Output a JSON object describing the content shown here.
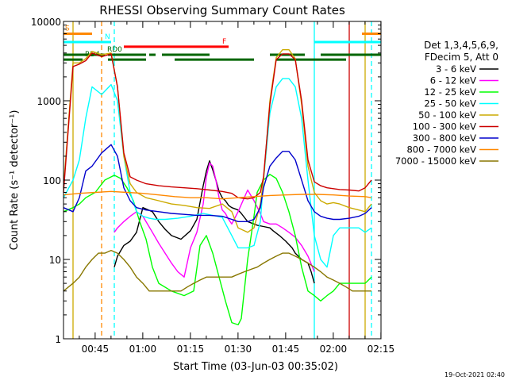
{
  "chart_data": {
    "type": "line",
    "title": "RHESSI Observing Summary Count Rates",
    "xlabel": "Start Time (03-Jun-03 00:35:02)",
    "ylabel": "Count Rate (s⁻¹ detector⁻¹)",
    "footer": "19-Oct-2021 02:40",
    "x_unit": "minutes after 00:35:02",
    "xlim": [
      0,
      100
    ],
    "ylim": [
      1,
      10000
    ],
    "yscale": "log",
    "x_ticks": [
      {
        "value": 9.97,
        "label": "00:45"
      },
      {
        "value": 24.97,
        "label": "01:00"
      },
      {
        "value": 39.97,
        "label": "01:15"
      },
      {
        "value": 54.97,
        "label": "01:30"
      },
      {
        "value": 69.97,
        "label": "01:45"
      },
      {
        "value": 84.97,
        "label": "02:00"
      },
      {
        "value": 99.97,
        "label": "02:15"
      }
    ],
    "y_ticks": [
      {
        "value": 1,
        "label": "1"
      },
      {
        "value": 10,
        "label": "10"
      },
      {
        "value": 100,
        "label": "100"
      },
      {
        "value": 1000,
        "label": "1000"
      },
      {
        "value": 10000,
        "label": "10000"
      }
    ],
    "legend": {
      "placement": "right",
      "header": [
        "Det 1,3,4,5,6,9,",
        "FDecim 5, Att 0"
      ]
    },
    "series": [
      {
        "name": "3 - 6 keV",
        "color": "#000000",
        "x": [
          16,
          17,
          19,
          21,
          23,
          25,
          28,
          30,
          32,
          34,
          37,
          40,
          42,
          43,
          44,
          45,
          46,
          47,
          48,
          49,
          50,
          51,
          52,
          53,
          55,
          56,
          58,
          60,
          61,
          63,
          65,
          66,
          68,
          70,
          72,
          73,
          75,
          77,
          78,
          79
        ],
        "y": [
          8,
          11,
          15,
          17,
          22,
          45,
          40,
          30,
          24,
          20,
          18,
          23,
          32,
          52,
          85,
          130,
          175,
          135,
          100,
          72,
          60,
          55,
          48,
          45,
          42,
          38,
          30,
          28,
          27,
          26,
          25,
          23,
          20,
          17,
          14,
          12,
          10,
          9,
          7,
          5
        ]
      },
      {
        "name": "6 - 12 keV",
        "color": "#ff00ff",
        "x": [
          16,
          17,
          19,
          21,
          23,
          25,
          28,
          30,
          32,
          34,
          36,
          38,
          40,
          42,
          44,
          45,
          46,
          47,
          48,
          49,
          50,
          51,
          52,
          53,
          55,
          58,
          60,
          62,
          63,
          65,
          67,
          69,
          71,
          73,
          75,
          77,
          79
        ],
        "y": [
          22,
          25,
          30,
          35,
          40,
          35,
          22,
          16,
          12,
          9,
          7,
          6,
          14,
          22,
          50,
          110,
          165,
          150,
          100,
          60,
          42,
          38,
          32,
          28,
          40,
          75,
          55,
          38,
          30,
          28,
          28,
          25,
          22,
          19,
          15,
          11,
          7
        ]
      },
      {
        "name": "12 - 25 keV",
        "color": "#00ff00",
        "x": [
          0,
          3,
          5,
          7,
          10,
          13,
          16,
          18,
          20,
          22,
          24,
          26,
          28,
          30,
          34,
          38,
          41,
          43,
          45,
          47,
          49,
          51,
          53,
          55,
          56,
          58,
          60,
          61,
          63,
          65,
          67,
          69,
          71,
          73,
          75,
          77,
          79,
          81,
          83,
          85,
          87,
          90,
          93,
          95,
          97
        ],
        "y": [
          40,
          45,
          50,
          60,
          70,
          100,
          115,
          105,
          80,
          55,
          30,
          18,
          8,
          5,
          4,
          3.5,
          4,
          15,
          20,
          12,
          6,
          3,
          1.6,
          1.5,
          1.8,
          10,
          35,
          70,
          100,
          118,
          105,
          70,
          40,
          20,
          8,
          4,
          3.5,
          3,
          3.5,
          4,
          5,
          5,
          5,
          5,
          6
        ]
      },
      {
        "name": "25 - 50 keV",
        "color": "#00ffff",
        "x": [
          0,
          3,
          5,
          7,
          9,
          12,
          15,
          17,
          19,
          21,
          23,
          25,
          27,
          29,
          32,
          36,
          40,
          44,
          47,
          50,
          53,
          55,
          58,
          60,
          62,
          63,
          65,
          67,
          69,
          71,
          73,
          75,
          77,
          79,
          81,
          83,
          85,
          87,
          90,
          93,
          95,
          97
        ],
        "y": [
          60,
          100,
          180,
          600,
          1500,
          1200,
          1600,
          1000,
          200,
          70,
          40,
          35,
          33,
          32,
          32,
          33,
          35,
          38,
          36,
          34,
          20,
          14,
          14,
          15,
          30,
          100,
          700,
          1500,
          1900,
          1900,
          1500,
          600,
          100,
          20,
          10,
          8,
          20,
          25,
          25,
          25,
          22,
          25
        ]
      },
      {
        "name": "50 - 100 keV",
        "color": "#ccaa00",
        "x": [
          0,
          3,
          5,
          7,
          9,
          12,
          15,
          17,
          19,
          21,
          23,
          26,
          30,
          34,
          38,
          42,
          46,
          50,
          53,
          55,
          58,
          60,
          62,
          63,
          65,
          67,
          69,
          71,
          73,
          75,
          77,
          79,
          81,
          83,
          85,
          87,
          90,
          93,
          95,
          97
        ],
        "y": [
          80,
          3000,
          3000,
          3400,
          4200,
          3800,
          4000,
          1500,
          200,
          90,
          70,
          60,
          55,
          50,
          48,
          45,
          44,
          50,
          40,
          25,
          22,
          25,
          50,
          100,
          1000,
          3500,
          4400,
          4400,
          3400,
          900,
          150,
          70,
          55,
          50,
          52,
          50,
          45,
          42,
          40,
          50
        ]
      },
      {
        "name": "100 - 300 keV",
        "color": "#cc0000",
        "x": [
          0,
          3,
          5,
          7,
          9,
          12,
          15,
          17,
          19,
          21,
          23,
          26,
          30,
          34,
          38,
          42,
          46,
          50,
          53,
          55,
          58,
          60,
          62,
          63,
          65,
          67,
          69,
          71,
          73,
          75,
          77,
          79,
          81,
          83,
          85,
          87,
          90,
          93,
          95,
          97
        ],
        "y": [
          70,
          2700,
          2900,
          3200,
          4000,
          3600,
          3900,
          1500,
          220,
          110,
          100,
          90,
          85,
          82,
          80,
          78,
          75,
          72,
          68,
          60,
          58,
          60,
          70,
          110,
          900,
          3300,
          3900,
          3900,
          3300,
          1000,
          180,
          95,
          85,
          80,
          78,
          76,
          75,
          73,
          80,
          100
        ]
      },
      {
        "name": "300 - 800 keV",
        "color": "#0000cc",
        "x": [
          0,
          3,
          5,
          7,
          9,
          12,
          15,
          17,
          19,
          21,
          23,
          26,
          30,
          34,
          38,
          42,
          46,
          50,
          53,
          55,
          58,
          60,
          62,
          63,
          65,
          67,
          69,
          71,
          73,
          75,
          77,
          79,
          81,
          83,
          85,
          87,
          90,
          93,
          95,
          97
        ],
        "y": [
          45,
          40,
          60,
          130,
          150,
          220,
          280,
          200,
          80,
          55,
          45,
          42,
          40,
          38,
          37,
          36,
          36,
          35,
          32,
          30,
          30,
          32,
          45,
          80,
          150,
          190,
          230,
          230,
          180,
          100,
          55,
          40,
          35,
          33,
          32,
          32,
          33,
          35,
          38,
          45
        ]
      },
      {
        "name": "800 - 7000 keV",
        "color": "#ff8800",
        "x": [
          0,
          5,
          10,
          15,
          20,
          25,
          30,
          35,
          40,
          45,
          50,
          55,
          60,
          65,
          70,
          75,
          80,
          85,
          90,
          95,
          97
        ],
        "y": [
          65,
          68,
          70,
          72,
          70,
          68,
          65,
          62,
          60,
          60,
          58,
          60,
          62,
          64,
          65,
          66,
          66,
          65,
          63,
          62,
          60
        ]
      },
      {
        "name": "7000 - 15000 keV",
        "color": "#887700",
        "x": [
          0,
          3,
          5,
          7,
          9,
          11,
          13,
          15,
          17,
          19,
          21,
          23,
          25,
          27,
          29,
          31,
          33,
          35,
          37,
          39,
          41,
          43,
          45,
          47,
          49,
          51,
          53,
          55,
          57,
          59,
          61,
          63,
          65,
          67,
          69,
          71,
          73,
          75,
          77,
          79,
          81,
          83,
          85,
          87,
          89,
          91,
          93,
          95,
          97
        ],
        "y": [
          4,
          5,
          6,
          8,
          10,
          12,
          12,
          13,
          12,
          10,
          8,
          6,
          5,
          4,
          4,
          4,
          4,
          4,
          4,
          4.5,
          5,
          5.5,
          6,
          6,
          6,
          6,
          6,
          6.5,
          7,
          7.5,
          8,
          9,
          10,
          11,
          12,
          12,
          11,
          10,
          9,
          8,
          7,
          6,
          5.5,
          5,
          4.5,
          4,
          4,
          4,
          4
        ]
      }
    ],
    "overlays": {
      "bars": [
        {
          "label": "S",
          "color": "#ff8800",
          "segments": [
            [
              -1,
              9
            ],
            [
              94,
              101
            ]
          ],
          "value": 7000
        },
        {
          "label": "N",
          "color": "#00ffff",
          "segments": [
            [
              -1,
              15
            ],
            [
              79,
              101
            ]
          ],
          "value": 5500
        },
        {
          "label": "F",
          "color": "#ff0000",
          "segments": [
            [
              19,
              52
            ]
          ],
          "value": 4800
        },
        {
          "label": "RD0",
          "color": "#006600",
          "segments": [
            [
              -1,
              13
            ],
            [
              14,
              26
            ],
            [
              27,
              29
            ],
            [
              31,
              46
            ],
            [
              65,
              76
            ],
            [
              81,
              101
            ]
          ],
          "value": 3800
        },
        {
          "label": "RD4",
          "color": "#006600",
          "segments": [
            [
              -1,
              6
            ],
            [
              14,
              26
            ],
            [
              35,
              60
            ],
            [
              67,
              89
            ]
          ],
          "value": 3300
        }
      ],
      "vlines": [
        {
          "x": 3,
          "color": "#ccaa00"
        },
        {
          "x": 12,
          "color": "#ff8800",
          "dashed": true
        },
        {
          "x": 16,
          "color": "#00ffff",
          "dashed": true
        },
        {
          "x": 79,
          "color": "#00ffff"
        },
        {
          "x": 90,
          "color": "#cc0000"
        },
        {
          "x": 95,
          "color": "#ccaa00"
        },
        {
          "x": 97,
          "color": "#00ffff",
          "dashed": true
        }
      ]
    }
  }
}
